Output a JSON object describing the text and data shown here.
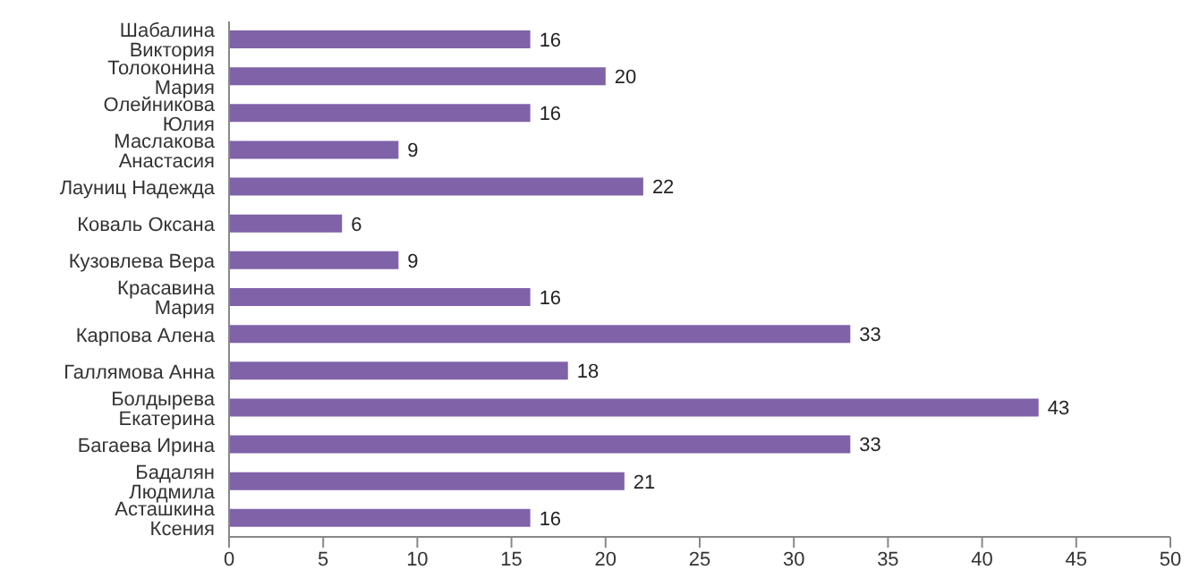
{
  "chart_data": {
    "type": "bar",
    "orientation": "horizontal",
    "categories": [
      "Шабалина Виктория",
      "Толоконина Мария",
      "Олейникова Юлия",
      "Маслакова Анастасия",
      "Лауниц Надежда",
      "Коваль Оксана",
      "Кузовлева Вера",
      "Красавина Мария",
      "Карпова Алена",
      "Галлямова Анна",
      "Болдырева Екатерина",
      "Багаева Ирина",
      "Бадалян Людмила",
      "Асташкина Ксения"
    ],
    "values": [
      16,
      20,
      16,
      9,
      22,
      6,
      9,
      16,
      33,
      18,
      43,
      33,
      21,
      16
    ],
    "color": "#7f62a8",
    "xlim": [
      0,
      50
    ],
    "xticks": [
      0,
      5,
      10,
      15,
      20,
      25,
      30,
      35,
      40,
      45,
      50
    ],
    "data_labels": true
  }
}
